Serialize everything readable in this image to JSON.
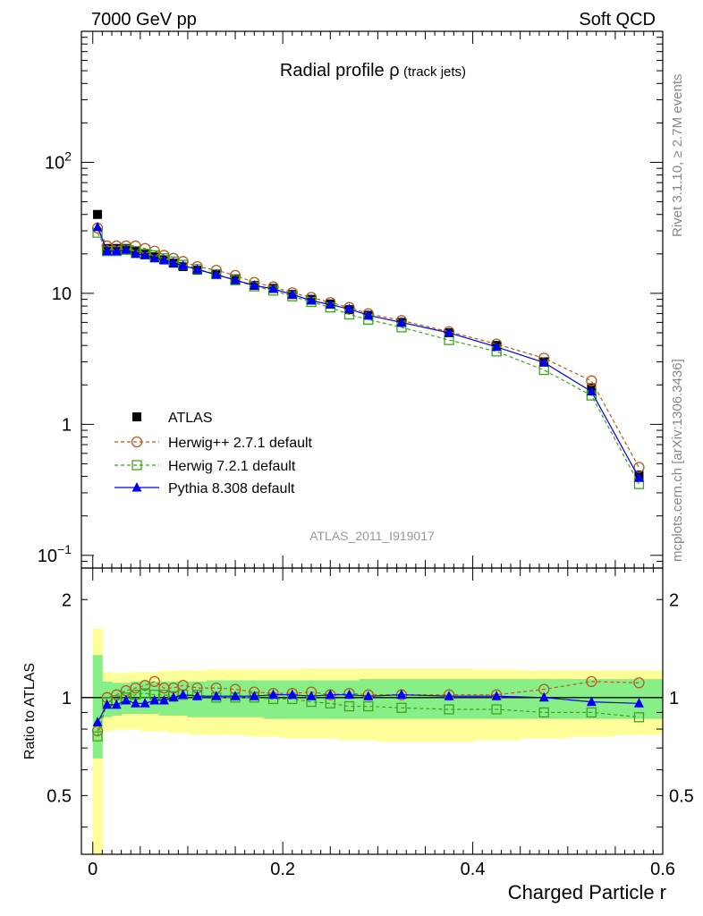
{
  "header": {
    "left": "7000 GeV pp",
    "right": "Soft QCD"
  },
  "side_labels": {
    "rivet": "Rivet 3.1.10, ≥ 2.7M events",
    "mcplots": "mcplots.cern.ch [arXiv:1306.3436]"
  },
  "chart_data": [
    {
      "type": "scatter",
      "title": "Radial profile ρ",
      "title_suffix": "(track jets)",
      "watermark": "ATLAS_2011_I919017",
      "xlim": [
        -0.012,
        0.6
      ],
      "ylim": [
        0.08,
        1000
      ],
      "yscale": "log",
      "yticks": [
        {
          "value": 100,
          "base": "10",
          "exp": "2"
        },
        {
          "value": 10,
          "base": "10",
          "exp": ""
        },
        {
          "value": 1,
          "base": "1",
          "exp": ""
        },
        {
          "value": 0.1,
          "base": "10",
          "exp": "−1"
        }
      ],
      "x": [
        0.005,
        0.015,
        0.025,
        0.035,
        0.045,
        0.055,
        0.065,
        0.075,
        0.085,
        0.095,
        0.11,
        0.13,
        0.15,
        0.17,
        0.19,
        0.21,
        0.23,
        0.25,
        0.27,
        0.29,
        0.325,
        0.375,
        0.425,
        0.475,
        0.525,
        0.575
      ],
      "legend": {
        "position": "bottom-left"
      },
      "series": [
        {
          "name": "ATLAS",
          "color": "#000000",
          "marker": "square-filled",
          "line": "none",
          "values": [
            40,
            22,
            22,
            22,
            21,
            20,
            19,
            18,
            17,
            16,
            15,
            14,
            12.9,
            11.5,
            10.9,
            9.8,
            9,
            8.3,
            7.5,
            6.8,
            6,
            5,
            4,
            3,
            1.9,
            0.41
          ]
        },
        {
          "name": "Herwig++ 2.7.1 default",
          "color": "#b35c1e",
          "marker": "circle-open",
          "line": "dashed",
          "values": [
            31.5,
            23,
            23,
            23,
            23,
            22,
            21,
            19.5,
            18.5,
            17.5,
            16,
            15,
            13.7,
            12.1,
            11.2,
            10.1,
            9.3,
            8.5,
            7.8,
            7,
            6.2,
            5.1,
            4.1,
            3.2,
            2.15,
            0.47
          ]
        },
        {
          "name": "Herwig 7.2.1 default",
          "color": "#3fa31e",
          "marker": "square-open",
          "line": "dashed",
          "values": [
            29,
            21,
            21,
            21.5,
            21,
            20,
            19.5,
            18.5,
            17.5,
            16.5,
            15.3,
            14,
            12.6,
            11.3,
            10.5,
            9.5,
            8.6,
            7.8,
            6.9,
            6.3,
            5.5,
            4.4,
            3.6,
            2.6,
            1.66,
            0.35
          ]
        },
        {
          "name": "Pythia 8.308 default",
          "color": "#0000ee",
          "marker": "triangle-filled",
          "line": "solid",
          "values": [
            32,
            21,
            21,
            21.5,
            20,
            19.5,
            18.5,
            18,
            17,
            16.3,
            15.2,
            13.9,
            12.6,
            11.5,
            10.8,
            9.8,
            8.8,
            8.2,
            7.6,
            6.8,
            6,
            5,
            3.9,
            2.96,
            1.78,
            0.39
          ]
        }
      ]
    },
    {
      "type": "scatter",
      "ylabel": "Ratio to ATLAS",
      "xlabel": "Charged Particle r",
      "xlim": [
        -0.012,
        0.6
      ],
      "ylim": [
        0.33,
        2.5
      ],
      "yscale": "log",
      "yticks": [
        {
          "value": 2,
          "label": "2"
        },
        {
          "value": 1,
          "label": "1"
        },
        {
          "value": 0.5,
          "label": "0.5"
        }
      ],
      "xticks": [
        {
          "value": 0,
          "label": "0"
        },
        {
          "value": 0.2,
          "label": "0.2"
        },
        {
          "value": 0.4,
          "label": "0.4"
        },
        {
          "value": 0.6,
          "label": "0.6"
        }
      ],
      "bands": {
        "edges": [
          0,
          0.01,
          0.02,
          0.03,
          0.04,
          0.05,
          0.06,
          0.07,
          0.08,
          0.09,
          0.1,
          0.12,
          0.14,
          0.16,
          0.18,
          0.2,
          0.22,
          0.24,
          0.26,
          0.28,
          0.3,
          0.35,
          0.4,
          0.45,
          0.5,
          0.55,
          0.6
        ],
        "outer": {
          "color": "#ffff99",
          "lo": [
            0.33,
            0.79,
            0.8,
            0.8,
            0.8,
            0.79,
            0.79,
            0.79,
            0.78,
            0.78,
            0.77,
            0.77,
            0.77,
            0.76,
            0.76,
            0.75,
            0.75,
            0.75,
            0.74,
            0.74,
            0.73,
            0.73,
            0.74,
            0.75,
            0.76,
            0.77
          ],
          "hi": [
            1.63,
            1.2,
            1.19,
            1.19,
            1.2,
            1.2,
            1.2,
            1.21,
            1.21,
            1.21,
            1.21,
            1.22,
            1.22,
            1.22,
            1.22,
            1.22,
            1.23,
            1.23,
            1.23,
            1.23,
            1.23,
            1.23,
            1.22,
            1.21,
            1.21,
            1.21
          ]
        },
        "inner": {
          "color": "#88ee88",
          "lo": [
            0.65,
            0.87,
            0.88,
            0.89,
            0.89,
            0.89,
            0.89,
            0.88,
            0.88,
            0.88,
            0.87,
            0.87,
            0.87,
            0.87,
            0.86,
            0.86,
            0.86,
            0.86,
            0.86,
            0.86,
            0.86,
            0.86,
            0.86,
            0.86,
            0.86,
            0.86
          ],
          "hi": [
            1.35,
            1.12,
            1.11,
            1.11,
            1.12,
            1.12,
            1.12,
            1.12,
            1.12,
            1.12,
            1.12,
            1.13,
            1.13,
            1.13,
            1.13,
            1.13,
            1.13,
            1.13,
            1.13,
            1.14,
            1.14,
            1.14,
            1.14,
            1.14,
            1.14,
            1.14
          ]
        }
      },
      "x": [
        0.005,
        0.015,
        0.025,
        0.035,
        0.045,
        0.055,
        0.065,
        0.075,
        0.085,
        0.095,
        0.11,
        0.13,
        0.15,
        0.17,
        0.19,
        0.21,
        0.23,
        0.25,
        0.27,
        0.29,
        0.325,
        0.375,
        0.425,
        0.475,
        0.525,
        0.575
      ],
      "series": [
        {
          "name": "Herwig++ 2.7.1 default",
          "color": "#b35c1e",
          "marker": "circle-open",
          "line": "dashed",
          "values": [
            0.79,
            1.0,
            1.02,
            1.05,
            1.07,
            1.09,
            1.12,
            1.07,
            1.07,
            1.09,
            1.07,
            1.07,
            1.06,
            1.04,
            1.03,
            1.03,
            1.04,
            1.02,
            1.03,
            1.02,
            1.02,
            1.02,
            1.02,
            1.06,
            1.12,
            1.11
          ]
        },
        {
          "name": "Herwig 7.2.1 default",
          "color": "#3fa31e",
          "marker": "square-open",
          "line": "dashed",
          "values": [
            0.76,
            0.97,
            0.98,
            1.0,
            1.02,
            1.03,
            1.02,
            1.02,
            1.01,
            1.02,
            1.02,
            1.0,
            1.0,
            1.0,
            0.99,
            0.99,
            0.97,
            0.96,
            0.94,
            0.94,
            0.93,
            0.92,
            0.92,
            0.9,
            0.9,
            0.87
          ]
        },
        {
          "name": "Pythia 8.308 default",
          "color": "#0000ee",
          "marker": "triangle-filled",
          "line": "solid",
          "values": [
            0.84,
            0.95,
            0.95,
            0.98,
            0.96,
            0.96,
            0.98,
            0.98,
            1.0,
            1.02,
            1.01,
            1.01,
            1.01,
            1.01,
            1.02,
            1.02,
            1.01,
            1.02,
            1.02,
            1.01,
            1.02,
            1.01,
            1.01,
            1.0,
            0.97,
            0.96
          ]
        }
      ]
    }
  ]
}
